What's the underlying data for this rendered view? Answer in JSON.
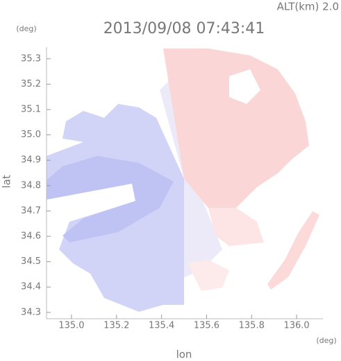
{
  "chart_data": {
    "type": "map",
    "title": "2013/09/08 07:43:41",
    "subtitle": "ALT(km) 2.0",
    "x_label": "lon",
    "y_label": "lat",
    "x_unit": "(deg)",
    "y_unit": "(deg)",
    "xlim": [
      134.889,
      136.117
    ],
    "ylim": [
      34.275,
      35.346
    ],
    "xticks": [
      {
        "value": 135.0,
        "label": "135.0"
      },
      135.2,
      135.4,
      135.6,
      135.8,
      {
        "value": 136.0,
        "label": "136.0"
      }
    ],
    "yticks": [
      34.3,
      34.4,
      34.5,
      34.6,
      34.7,
      34.8,
      34.9,
      {
        "value": 35.0,
        "label": "35.0"
      },
      35.1,
      35.2,
      35.3
    ]
  }
}
